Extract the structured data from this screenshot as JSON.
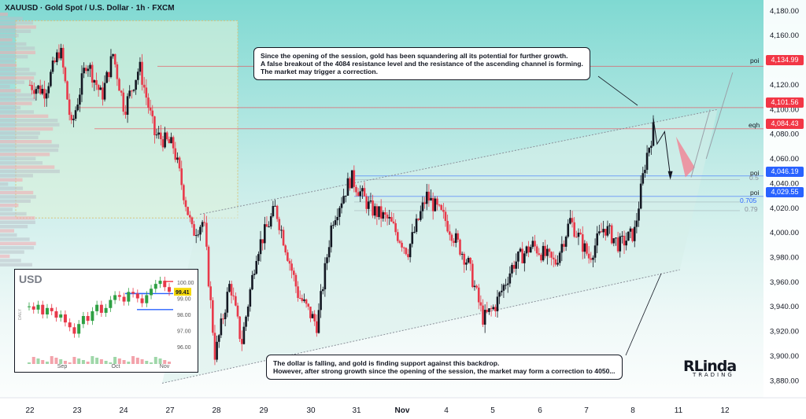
{
  "symbol_title": "XAUUSD · Gold Spot / U.S. Dollar · 1h · FXCM",
  "colors": {
    "up": "#131722",
    "down": "#e8394a",
    "blue": "#2962ff",
    "red": "#f23645",
    "channel": "#8a8f99"
  },
  "callout_top": {
    "line1": "Since the opening of the session, gold has been squandering all its potential for further growth.",
    "line2": "A false breakout of the 4084 resistance level and the resistance of the ascending channel is forming.",
    "line3": "The market may trigger a correction."
  },
  "callout_bottom": {
    "line1": "The dollar is falling, and gold is finding support against this backdrop.",
    "line2": "However, after strong growth since the opening of the session, the market may form a correction to 4050..."
  },
  "level_tags": {
    "poi1": "poi",
    "eqh": "eqh",
    "poi2": "poi",
    "poi3": "poi",
    "fib05": "0.5",
    "fib705": "0.705",
    "fib79": "0.79"
  },
  "price_labels": {
    "p1": "4,134.99",
    "p2": "4,101.56",
    "p3": "4,084.43",
    "p4": "4,046.19",
    "p5": "4,029.55"
  },
  "logo": {
    "main": "RLinda",
    "sub": "TRADING"
  },
  "inset": {
    "label": "USD",
    "price_label": "99.41",
    "y_ticks": [
      "100.00",
      "99.00",
      "98.00",
      "97.00",
      "96.00"
    ],
    "x_ticks": [
      "Sep",
      "Oct",
      "Nov"
    ],
    "side_label": "DAILY"
  },
  "chart_data": {
    "type": "candlestick",
    "title": "XAUUSD · Gold Spot / U.S. Dollar · 1h · FXCM",
    "y_ticks": [
      4180,
      4160,
      4140,
      4120,
      4100,
      4080,
      4060,
      4040,
      4020,
      4000,
      3980,
      3960,
      3940,
      3920,
      3900,
      3880
    ],
    "x_ticks": [
      "22",
      "23",
      "24",
      "27",
      "28",
      "29",
      "30",
      "31",
      "Nov",
      "4",
      "5",
      "6",
      "7",
      "8",
      "11",
      "12"
    ],
    "ylim": [
      3870,
      4185
    ],
    "levels": [
      {
        "name": "poi",
        "value": 4134.99,
        "color": "#f23645"
      },
      {
        "name": "",
        "value": 4101.56,
        "color": "#f23645"
      },
      {
        "name": "eqh",
        "value": 4084.43,
        "color": "#f23645"
      },
      {
        "name": "poi",
        "value": 4046.19,
        "color": "#2962ff"
      },
      {
        "name": "poi",
        "value": 4029.55,
        "color": "#2962ff"
      }
    ],
    "fib_levels": [
      {
        "label": "0.5",
        "value": 4043
      },
      {
        "label": "0.705",
        "value": 4025
      },
      {
        "label": "0.79",
        "value": 4018
      }
    ],
    "path_keypoints": [
      {
        "x": 22.0,
        "price": 4120
      },
      {
        "x": 22.4,
        "price": 4115
      },
      {
        "x": 22.8,
        "price": 4150
      },
      {
        "x": 23.1,
        "price": 4085
      },
      {
        "x": 23.5,
        "price": 4140
      },
      {
        "x": 23.9,
        "price": 4110
      },
      {
        "x": 24.2,
        "price": 4145
      },
      {
        "x": 24.5,
        "price": 4100
      },
      {
        "x": 24.9,
        "price": 4135
      },
      {
        "x": 25.3,
        "price": 4080
      },
      {
        "x": 25.8,
        "price": 4070
      },
      {
        "x": 26.3,
        "price": 4000
      },
      {
        "x": 26.6,
        "price": 4010
      },
      {
        "x": 26.9,
        "price": 3900
      },
      {
        "x": 27.3,
        "price": 3960
      },
      {
        "x": 27.6,
        "price": 3910
      },
      {
        "x": 28.0,
        "price": 3985
      },
      {
        "x": 28.5,
        "price": 4020
      },
      {
        "x": 29.1,
        "price": 3950
      },
      {
        "x": 29.6,
        "price": 3925
      },
      {
        "x": 30.0,
        "price": 4010
      },
      {
        "x": 30.5,
        "price": 4045
      },
      {
        "x": 31.0,
        "price": 4020
      },
      {
        "x": 31.5,
        "price": 4010
      },
      {
        "x": 32.0,
        "price": 3985
      },
      {
        "x": 32.5,
        "price": 4030
      },
      {
        "x": 33.0,
        "price": 4010
      },
      {
        "x": 33.6,
        "price": 3975
      },
      {
        "x": 34.0,
        "price": 3930
      },
      {
        "x": 34.3,
        "price": 3940
      },
      {
        "x": 34.8,
        "price": 3975
      },
      {
        "x": 35.3,
        "price": 3990
      },
      {
        "x": 35.9,
        "price": 3975
      },
      {
        "x": 36.3,
        "price": 4010
      },
      {
        "x": 36.8,
        "price": 3980
      },
      {
        "x": 37.2,
        "price": 4005
      },
      {
        "x": 37.6,
        "price": 3990
      },
      {
        "x": 38.0,
        "price": 4000
      },
      {
        "x": 38.3,
        "price": 4060
      },
      {
        "x": 38.5,
        "price": 4084
      }
    ],
    "channel": {
      "lower": [
        {
          "x": 25.5,
          "price": 3878
        },
        {
          "x": 39.0,
          "price": 3968
        }
      ],
      "upper": [
        {
          "x": 26.5,
          "price": 4015
        },
        {
          "x": 40.2,
          "price": 4100
        }
      ]
    },
    "projection": [
      {
        "x": 38.5,
        "price": 4084
      },
      {
        "x": 38.9,
        "price": 4048
      },
      {
        "x": 39.3,
        "price": 4104
      },
      {
        "x": 39.8,
        "price": 4135
      }
    ],
    "inset_chart": {
      "series": "USD daily",
      "ylim": [
        95.5,
        100.3
      ],
      "values": [
        98.5,
        98.3,
        98.6,
        98.0,
        98.4,
        98.2,
        97.8,
        98.0,
        97.5,
        97.2,
        96.8,
        97.4,
        97.9,
        97.6,
        98.2,
        98.6,
        98.1,
        98.4,
        98.9,
        99.2,
        99.1,
        98.8,
        99.4,
        99.3,
        99.0,
        98.7,
        99.2,
        99.6,
        99.9,
        100.1,
        99.7,
        99.41
      ],
      "levels": [
        {
          "value": 100.05,
          "color": "#f23645"
        },
        {
          "value": 99.3,
          "color": "#2962ff"
        },
        {
          "value": 98.3,
          "color": "#2962ff"
        }
      ]
    }
  }
}
